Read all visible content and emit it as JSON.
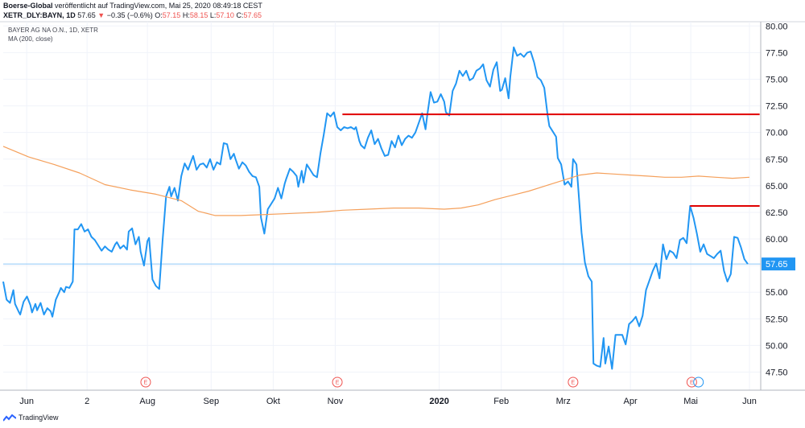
{
  "header": {
    "publisher": "Boerse-Global",
    "published_text": "veröffentlicht auf TradingView.com, Mai 25, 2020 08:49:18 CEST",
    "symbol": "XETR_DLY:BAYN, 1D",
    "last": "57.65",
    "arrow": "▼",
    "change": "−0.35 (−0.6%)",
    "o_label": "O:",
    "o_value": "57.15",
    "h_label": "H:",
    "h_value": "58.15",
    "l_label": "L:",
    "l_value": "57.10",
    "c_label": "C:",
    "c_value": "57.65"
  },
  "legend": {
    "title": "BAYER AG NA O.N., 1D, XETR",
    "indicator": "MA (200, close)"
  },
  "footer": {
    "brand": "TradingView"
  },
  "colors": {
    "price": "#2196f3",
    "ma": "#f5a05b",
    "resistance": "#e00000",
    "last_line": "#90caf9",
    "event": "#ef5350",
    "axis": "#50535e",
    "grid": "#f0f3fa"
  },
  "chart_data": {
    "type": "line",
    "y_axis_ticks": [
      "80.00",
      "77.50",
      "75.00",
      "72.50",
      "70.00",
      "67.50",
      "65.00",
      "62.50",
      "60.00",
      "57.50",
      "55.00",
      "52.50",
      "50.00",
      "47.50"
    ],
    "y_axis_position": "right",
    "ylim": [
      45.8,
      80.4
    ],
    "x_axis_ticks": [
      "Jun",
      "2",
      "Aug",
      "Sep",
      "Okt",
      "Nov",
      "2020",
      "Feb",
      "Mrz",
      "Apr",
      "Mai",
      "Jun"
    ],
    "x_axis_bold": [
      "2020"
    ],
    "last_value": 57.65,
    "last_value_label": "57.65",
    "grid": true,
    "x_index_count": 256,
    "series": [
      {
        "type": "line",
        "values": [
          [
            0,
            56.0
          ],
          [
            2,
            54.3
          ],
          [
            4,
            54.0
          ],
          [
            6,
            55.2
          ],
          [
            7,
            53.9
          ],
          [
            9,
            53.2
          ],
          [
            10,
            52.9
          ],
          [
            12,
            54.1
          ],
          [
            14,
            54.6
          ],
          [
            16,
            53.8
          ],
          [
            17,
            53.1
          ],
          [
            19,
            53.9
          ],
          [
            20,
            53.3
          ],
          [
            22,
            54.0
          ],
          [
            24,
            52.9
          ],
          [
            26,
            53.5
          ],
          [
            28,
            53.2
          ],
          [
            29,
            52.7
          ],
          [
            31,
            54.3
          ],
          [
            33,
            55.0
          ],
          [
            34,
            55.4
          ],
          [
            36,
            55.0
          ],
          [
            37,
            55.5
          ],
          [
            39,
            55.4
          ],
          [
            41,
            56.0
          ],
          [
            42,
            60.9
          ],
          [
            44,
            60.9
          ],
          [
            46,
            61.4
          ],
          [
            48,
            60.7
          ],
          [
            50,
            60.9
          ],
          [
            52,
            60.2
          ],
          [
            54,
            59.9
          ],
          [
            56,
            59.4
          ],
          [
            58,
            58.9
          ],
          [
            60,
            59.3
          ],
          [
            62,
            59.0
          ],
          [
            64,
            58.8
          ],
          [
            66,
            59.5
          ],
          [
            67,
            59.7
          ],
          [
            69,
            59.1
          ],
          [
            71,
            59.4
          ],
          [
            73,
            59.0
          ],
          [
            74,
            60.7
          ],
          [
            76,
            61.0
          ],
          [
            78,
            59.5
          ],
          [
            80,
            60.2
          ],
          [
            81,
            58.8
          ],
          [
            83,
            57.5
          ],
          [
            85,
            59.8
          ],
          [
            86,
            60.1
          ],
          [
            88,
            56.2
          ],
          [
            90,
            55.6
          ],
          [
            92,
            55.3
          ],
          [
            94,
            59.9
          ],
          [
            96,
            64.0
          ],
          [
            98,
            64.9
          ],
          [
            99,
            64.0
          ],
          [
            101,
            64.8
          ],
          [
            103,
            63.6
          ],
          [
            105,
            65.9
          ],
          [
            107,
            67.1
          ],
          [
            109,
            66.5
          ],
          [
            111,
            67.4
          ],
          [
            112,
            67.8
          ],
          [
            114,
            66.5
          ],
          [
            116,
            67.0
          ],
          [
            118,
            67.1
          ],
          [
            120,
            66.7
          ],
          [
            122,
            67.5
          ],
          [
            124,
            66.5
          ],
          [
            126,
            67.2
          ],
          [
            128,
            67.0
          ],
          [
            130,
            69.0
          ],
          [
            132,
            68.9
          ],
          [
            134,
            67.5
          ],
          [
            136,
            68.0
          ],
          [
            137,
            67.5
          ],
          [
            139,
            66.6
          ],
          [
            141,
            67.2
          ],
          [
            143,
            66.9
          ],
          [
            145,
            66.3
          ],
          [
            147,
            65.9
          ],
          [
            149,
            65.8
          ],
          [
            151,
            64.9
          ],
          [
            152,
            62.0
          ],
          [
            154,
            60.5
          ],
          [
            156,
            62.8
          ],
          [
            158,
            63.3
          ],
          [
            160,
            63.8
          ],
          [
            162,
            64.8
          ],
          [
            164,
            63.8
          ],
          [
            166,
            65.2
          ],
          [
            167,
            65.7
          ],
          [
            169,
            66.6
          ],
          [
            171,
            66.3
          ],
          [
            173,
            65.9
          ],
          [
            174,
            64.9
          ],
          [
            176,
            66.4
          ],
          [
            177,
            65.3
          ],
          [
            179,
            67.0
          ],
          [
            181,
            66.5
          ],
          [
            183,
            66.0
          ],
          [
            185,
            65.8
          ],
          [
            187,
            68.0
          ],
          [
            189,
            69.8
          ],
          [
            191,
            71.8
          ],
          [
            193,
            71.5
          ],
          [
            195,
            71.9
          ],
          [
            197,
            70.5
          ],
          [
            199,
            70.2
          ],
          [
            201,
            70.5
          ],
          [
            203,
            70.4
          ],
          [
            205,
            70.5
          ],
          [
            207,
            70.3
          ],
          [
            208,
            70.5
          ],
          [
            210,
            69.2
          ],
          [
            211,
            68.8
          ],
          [
            213,
            68.5
          ],
          [
            215,
            69.5
          ],
          [
            217,
            70.2
          ],
          [
            219,
            68.9
          ],
          [
            221,
            69.4
          ],
          [
            223,
            68.5
          ],
          [
            225,
            67.8
          ],
          [
            227,
            67.9
          ],
          [
            229,
            69.2
          ],
          [
            231,
            68.6
          ],
          [
            233,
            69.7
          ],
          [
            235,
            68.8
          ],
          [
            237,
            69.4
          ],
          [
            239,
            69.7
          ],
          [
            241,
            69.5
          ],
          [
            243,
            70.0
          ],
          [
            245,
            70.9
          ],
          [
            247,
            71.8
          ],
          [
            249,
            70.3
          ],
          [
            250,
            71.6
          ],
          [
            252,
            73.8
          ],
          [
            254,
            72.8
          ],
          [
            256,
            72.9
          ],
          [
            258,
            73.6
          ],
          [
            260,
            72.9
          ],
          [
            261,
            71.9
          ],
          [
            263,
            71.6
          ],
          [
            265,
            73.9
          ],
          [
            267,
            74.6
          ],
          [
            269,
            75.8
          ],
          [
            271,
            75.3
          ],
          [
            273,
            75.8
          ],
          [
            275,
            74.9
          ],
          [
            277,
            75.1
          ],
          [
            279,
            75.8
          ],
          [
            281,
            76.0
          ],
          [
            283,
            76.4
          ],
          [
            285,
            74.9
          ],
          [
            287,
            74.3
          ],
          [
            289,
            75.9
          ],
          [
            291,
            76.6
          ],
          [
            293,
            73.9
          ],
          [
            294,
            74.0
          ],
          [
            296,
            75.1
          ],
          [
            298,
            73.2
          ],
          [
            299,
            75.2
          ],
          [
            301,
            78.0
          ],
          [
            303,
            77.2
          ],
          [
            305,
            77.4
          ],
          [
            307,
            77.1
          ],
          [
            309,
            77.5
          ],
          [
            311,
            77.6
          ],
          [
            313,
            76.6
          ],
          [
            315,
            75.2
          ],
          [
            317,
            74.9
          ],
          [
            319,
            74.2
          ],
          [
            321,
            71.6
          ],
          [
            322,
            70.6
          ],
          [
            324,
            70.1
          ],
          [
            326,
            69.6
          ],
          [
            327,
            67.6
          ],
          [
            329,
            67.0
          ],
          [
            331,
            65.1
          ],
          [
            333,
            65.4
          ],
          [
            335,
            64.9
          ],
          [
            336,
            67.5
          ],
          [
            338,
            67.0
          ],
          [
            339,
            64.9
          ],
          [
            341,
            60.6
          ],
          [
            343,
            57.8
          ],
          [
            345,
            56.5
          ],
          [
            347,
            56.0
          ],
          [
            348,
            48.3
          ],
          [
            350,
            48.1
          ],
          [
            352,
            48.0
          ],
          [
            354,
            50.7
          ],
          [
            355,
            48.3
          ],
          [
            357,
            49.9
          ],
          [
            359,
            47.8
          ],
          [
            361,
            51.0
          ],
          [
            363,
            51.0
          ],
          [
            365,
            51.0
          ],
          [
            367,
            50.1
          ],
          [
            369,
            52.0
          ],
          [
            371,
            52.3
          ],
          [
            373,
            52.7
          ],
          [
            375,
            51.8
          ],
          [
            377,
            52.8
          ],
          [
            379,
            55.2
          ],
          [
            381,
            56.1
          ],
          [
            383,
            57.0
          ],
          [
            385,
            57.7
          ],
          [
            387,
            56.3
          ],
          [
            389,
            59.5
          ],
          [
            391,
            58.1
          ],
          [
            393,
            58.9
          ],
          [
            395,
            58.7
          ],
          [
            397,
            58.2
          ],
          [
            399,
            59.9
          ],
          [
            401,
            60.1
          ],
          [
            403,
            59.6
          ],
          [
            405,
            63.1
          ],
          [
            407,
            62.0
          ],
          [
            409,
            60.5
          ],
          [
            411,
            58.8
          ],
          [
            413,
            59.5
          ],
          [
            415,
            58.6
          ],
          [
            417,
            58.4
          ],
          [
            419,
            58.2
          ],
          [
            421,
            58.6
          ],
          [
            423,
            58.9
          ],
          [
            425,
            57.0
          ],
          [
            427,
            56.0
          ],
          [
            429,
            56.7
          ],
          [
            431,
            60.2
          ],
          [
            433,
            60.1
          ],
          [
            435,
            59.2
          ],
          [
            437,
            58.1
          ],
          [
            439,
            57.65
          ]
        ]
      },
      {
        "type": "line",
        "values": [
          [
            0,
            68.7
          ],
          [
            15,
            67.7
          ],
          [
            30,
            67.0
          ],
          [
            45,
            66.2
          ],
          [
            60,
            65.1
          ],
          [
            75,
            64.6
          ],
          [
            90,
            64.2
          ],
          [
            105,
            63.6
          ],
          [
            115,
            62.6
          ],
          [
            125,
            62.2
          ],
          [
            140,
            62.2
          ],
          [
            155,
            62.3
          ],
          [
            170,
            62.4
          ],
          [
            185,
            62.5
          ],
          [
            200,
            62.7
          ],
          [
            215,
            62.8
          ],
          [
            230,
            62.9
          ],
          [
            245,
            62.9
          ],
          [
            260,
            62.8
          ],
          [
            270,
            62.9
          ],
          [
            280,
            63.2
          ],
          [
            290,
            63.7
          ],
          [
            300,
            64.1
          ],
          [
            310,
            64.5
          ],
          [
            320,
            65.0
          ],
          [
            330,
            65.5
          ],
          [
            340,
            66.0
          ],
          [
            350,
            66.2
          ],
          [
            360,
            66.1
          ],
          [
            370,
            66.0
          ],
          [
            380,
            65.9
          ],
          [
            390,
            65.8
          ],
          [
            400,
            65.8
          ],
          [
            410,
            65.9
          ],
          [
            420,
            65.8
          ],
          [
            430,
            65.7
          ],
          [
            440,
            65.8
          ]
        ]
      }
    ],
    "x_tick_positions": [
      14,
      50,
      86,
      124,
      161,
      198,
      260,
      297,
      334,
      374,
      410,
      445
    ],
    "resistance_lines": [
      {
        "x1": 200,
        "x2": 446,
        "y": 71.7
      },
      {
        "x1": 405,
        "x2": 446,
        "y": 63.1
      }
    ],
    "event_markers": [
      {
        "x": 84,
        "label": "E"
      },
      {
        "x": 197,
        "label": "E"
      },
      {
        "x": 336,
        "label": "E"
      },
      {
        "x": 406,
        "label": "E"
      }
    ]
  }
}
